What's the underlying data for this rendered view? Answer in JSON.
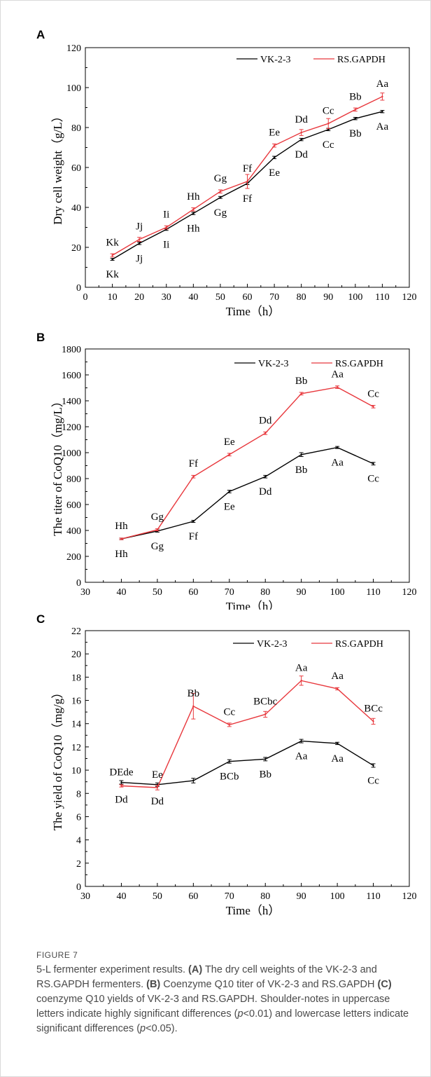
{
  "panels": [
    {
      "letter": "A"
    },
    {
      "letter": "B"
    },
    {
      "letter": "C"
    }
  ],
  "chart_data": [
    {
      "type": "line",
      "xlabel": "Time（h）",
      "ylabel": "Dry cell weight（g/L）",
      "xlim": [
        0,
        120
      ],
      "ylim": [
        0,
        120
      ],
      "xticks": [
        0,
        10,
        20,
        30,
        40,
        50,
        60,
        70,
        80,
        90,
        100,
        110,
        120
      ],
      "yticks": [
        0,
        20,
        40,
        60,
        80,
        100,
        120
      ],
      "grid": false,
      "legend": "top-right",
      "series": [
        {
          "name": "VK-2-3",
          "color": "#000000",
          "x": [
            10,
            20,
            30,
            40,
            50,
            60,
            70,
            80,
            90,
            100,
            110
          ],
          "y": [
            14,
            22,
            29,
            37,
            45,
            52,
            65,
            74,
            79,
            84.5,
            88
          ],
          "err": [
            0.5,
            0.6,
            0.5,
            0.6,
            0.5,
            0.6,
            0.6,
            0.6,
            0.6,
            0.6,
            0.6
          ],
          "labels": [
            "Kk",
            "Jj",
            "Ii",
            "Hh",
            "Gg",
            "Ff",
            "Ee",
            "Dd",
            "Cc",
            "Bb",
            "Aa"
          ],
          "label_pos": "below"
        },
        {
          "name": "RS.GAPDH",
          "color": "#e8383d",
          "x": [
            10,
            20,
            30,
            40,
            50,
            60,
            70,
            80,
            90,
            100,
            110
          ],
          "y": [
            16,
            24,
            30,
            39,
            48,
            53,
            71,
            77.5,
            82,
            89,
            95.5
          ],
          "err": [
            0.8,
            1,
            0.8,
            0.8,
            0.8,
            3.5,
            0.8,
            1.5,
            2.5,
            0.8,
            1.8
          ],
          "labels": [
            "Kk",
            "Jj",
            "Ii",
            "Hh",
            "Gg",
            "Ff",
            "Ee",
            "Dd",
            "Cc",
            "Bb",
            "Aa"
          ],
          "label_pos": "above"
        }
      ]
    },
    {
      "type": "line",
      "xlabel": "Time（h）",
      "ylabel": "The titer of CoQ10（mg/L）",
      "xlim": [
        30,
        120
      ],
      "ylim": [
        0,
        1800
      ],
      "xticks": [
        30,
        40,
        50,
        60,
        70,
        80,
        90,
        100,
        110,
        120
      ],
      "yticks": [
        0,
        200,
        400,
        600,
        800,
        1000,
        1200,
        1400,
        1600,
        1800
      ],
      "grid": false,
      "legend": "top-right",
      "series": [
        {
          "name": "VK-2-3",
          "color": "#000000",
          "x": [
            40,
            50,
            60,
            70,
            80,
            90,
            100,
            110
          ],
          "y": [
            335,
            395,
            470,
            700,
            815,
            985,
            1040,
            915
          ],
          "err": [
            6,
            8,
            8,
            10,
            10,
            15,
            8,
            10
          ],
          "labels": [
            "Hh",
            "Gg",
            "Ff",
            "Ee",
            "Dd",
            "Bb",
            "Aa",
            "Cc"
          ],
          "label_pos": "below"
        },
        {
          "name": "RS.GAPDH",
          "color": "#e8383d",
          "x": [
            40,
            50,
            60,
            70,
            80,
            90,
            100,
            110
          ],
          "y": [
            335,
            405,
            815,
            985,
            1150,
            1455,
            1505,
            1355
          ],
          "err": [
            6,
            8,
            10,
            10,
            10,
            10,
            10,
            10
          ],
          "labels": [
            "Hh",
            "Gg",
            "Ff",
            "Ee",
            "Dd",
            "Bb",
            "Aa",
            "Cc"
          ],
          "label_pos": "above"
        }
      ]
    },
    {
      "type": "line",
      "xlabel": "Time（h）",
      "ylabel": "The yield of CoQ10（mg/g）",
      "xlim": [
        30,
        120
      ],
      "ylim": [
        0,
        22
      ],
      "xticks": [
        30,
        40,
        50,
        60,
        70,
        80,
        90,
        100,
        110,
        120
      ],
      "yticks": [
        0,
        2,
        4,
        6,
        8,
        10,
        12,
        14,
        16,
        18,
        20,
        22
      ],
      "grid": false,
      "legend": "top-right",
      "series": [
        {
          "name": "VK-2-3",
          "color": "#000000",
          "x": [
            40,
            50,
            60,
            70,
            80,
            90,
            100,
            110
          ],
          "y": [
            8.95,
            8.75,
            9.1,
            10.75,
            10.95,
            12.5,
            12.3,
            10.4
          ],
          "err": [
            0.15,
            0.15,
            0.2,
            0.15,
            0.15,
            0.15,
            0.1,
            0.15
          ],
          "labels": [
            "DEde",
            "Ee",
            "BCb",
            "Bb",
            "Aa",
            "Aa",
            "Cc"
          ],
          "label_x": [
            40,
            50,
            70,
            80,
            90,
            100,
            110
          ],
          "label_pos": "mixed"
        },
        {
          "name": "RS.GAPDH",
          "color": "#e8383d",
          "x": [
            40,
            50,
            60,
            70,
            80,
            90,
            100,
            110
          ],
          "y": [
            8.65,
            8.5,
            15.5,
            13.9,
            14.8,
            17.7,
            17.0,
            14.2
          ],
          "err": [
            0.1,
            0.2,
            1.1,
            0.15,
            0.25,
            0.4,
            0.1,
            0.25
          ],
          "labels": [
            "Dd",
            "Dd",
            "Bb",
            "Cc",
            "BCbc",
            "Aa",
            "Aa",
            "BCc"
          ],
          "label_pos": "mixed"
        }
      ]
    }
  ],
  "caption": {
    "label": "FIGURE 7",
    "parts": [
      {
        "t": "5-L fermenter experiment results. ",
        "b": false
      },
      {
        "t": "(A)",
        "b": true
      },
      {
        "t": " The dry cell weights of the VK-2-3 and RS.GAPDH fermenters. ",
        "b": false
      },
      {
        "t": "(B)",
        "b": true
      },
      {
        "t": " Coenzyme Q10 titer of VK-2-3 and RS.GAPDH ",
        "b": false
      },
      {
        "t": "(C)",
        "b": true
      },
      {
        "t": " coenzyme Q10 yields of VK-2-3 and RS.GAPDH. Shoulder-notes in uppercase letters indicate highly significant differences (",
        "b": false
      },
      {
        "t": "p",
        "i": true
      },
      {
        "t": "<0.01) and lowercase letters indicate significant differences (",
        "b": false
      },
      {
        "t": "p",
        "i": true
      },
      {
        "t": "<0.05).",
        "b": false
      }
    ]
  }
}
